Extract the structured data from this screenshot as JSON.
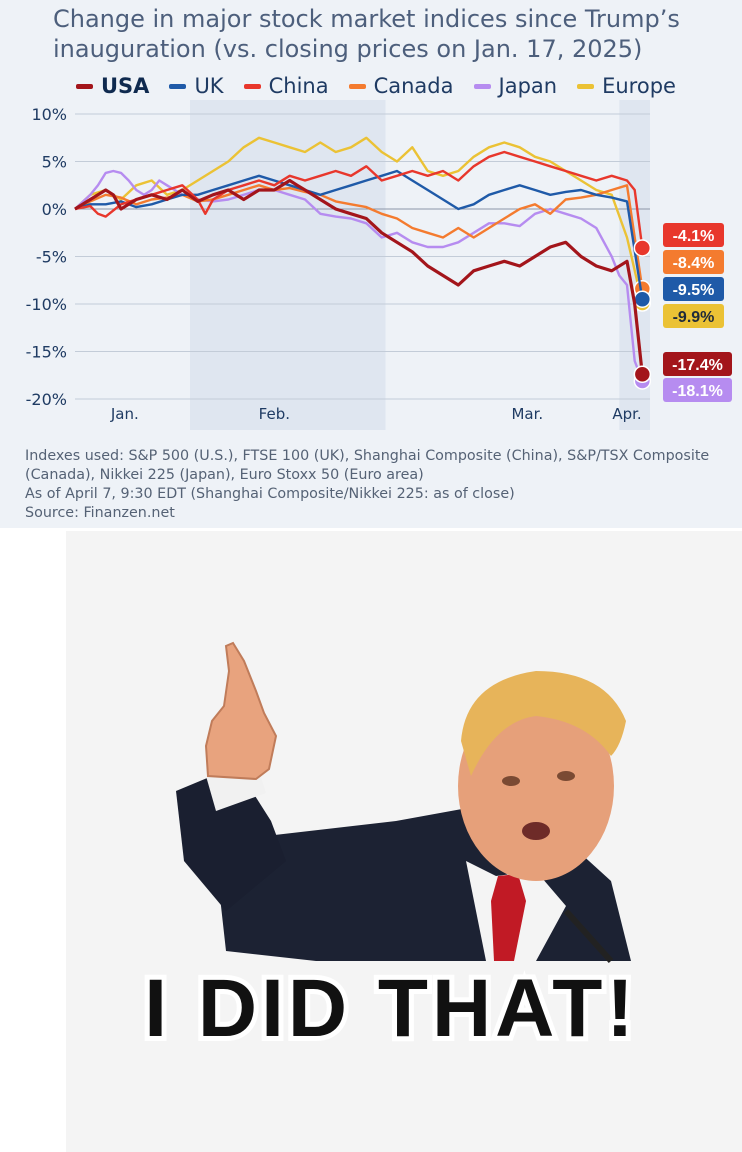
{
  "chart": {
    "title_line1": "Change in major stock market indices since Trump’s",
    "title_line2": "inauguration (vs. closing prices on Jan. 17, 2025)",
    "notes": [
      "Indexes used: S&P 500 (U.S.), FTSE 100 (UK), Shanghai Composite (China), S&P/TSX Composite",
      "(Canada), Nikkei 225 (Japan), Euro Stoxx 50 (Euro area)",
      "As of April 7, 9:30 EDT (Shanghai Composite/Nikkei 225: as of close)",
      "Source: Finanzen.net"
    ]
  },
  "chart_data": {
    "type": "line",
    "title": "Change in major stock market indices since Trump’s inauguration (vs. closing prices on Jan. 17, 2025)",
    "ylim": [
      -20,
      10
    ],
    "y_ticks": [
      10,
      5,
      0,
      -5,
      -10,
      -15,
      -20
    ],
    "y_tick_labels": [
      "10%",
      "5%",
      "0%",
      "-5%",
      "-10%",
      "-15%",
      "-20%"
    ],
    "x_tick_labels": [
      "Jan.",
      "Feb.",
      "Mar.",
      "Apr."
    ],
    "x_tick_positions": [
      6.5,
      26,
      59,
      72
    ],
    "xlim": [
      0,
      75
    ],
    "grid": true,
    "legend": "top",
    "shaded_ranges": [
      [
        15,
        40.5
      ],
      [
        71,
        75
      ]
    ],
    "series": [
      {
        "name": "Europe",
        "color": "#ebc235",
        "end_label": "-9.9%",
        "x": [
          0,
          2,
          4,
          6,
          8,
          10,
          12,
          14,
          16,
          18,
          20,
          22,
          24,
          26,
          28,
          30,
          32,
          34,
          36,
          38,
          40,
          42,
          44,
          46,
          48,
          50,
          52,
          54,
          56,
          58,
          60,
          62,
          64,
          66,
          68,
          70,
          72,
          74
        ],
        "y": [
          0,
          1.5,
          2,
          1,
          2.5,
          3,
          1.5,
          2,
          3,
          4,
          5,
          6.5,
          7.5,
          7,
          6.5,
          6,
          7,
          6,
          6.5,
          7.5,
          6,
          5,
          6.5,
          4,
          3.5,
          4,
          5.5,
          6.5,
          7,
          6.5,
          5.5,
          5,
          4,
          3,
          2,
          1.5,
          -3,
          -9.9
        ]
      },
      {
        "name": "Japan",
        "color": "#b68cf0",
        "end_label": "-18.1%",
        "x": [
          0,
          2,
          3,
          4,
          5,
          6,
          7,
          8,
          9,
          10,
          11,
          12,
          13,
          14,
          16,
          18,
          20,
          22,
          24,
          26,
          28,
          30,
          32,
          34,
          36,
          38,
          40,
          42,
          44,
          46,
          48,
          50,
          52,
          54,
          56,
          58,
          60,
          62,
          64,
          66,
          68,
          70,
          71,
          72,
          73,
          74
        ],
        "y": [
          0,
          1.5,
          2.5,
          3.8,
          4,
          3.8,
          3,
          2,
          1.5,
          2,
          3,
          2.5,
          2,
          1.5,
          1,
          0.8,
          1,
          1.5,
          2,
          2,
          1.5,
          1,
          -0.5,
          -0.8,
          -1,
          -1.5,
          -3,
          -2.5,
          -3.5,
          -4,
          -4,
          -3.5,
          -2.5,
          -1.5,
          -1.5,
          -1.8,
          -0.5,
          0,
          -0.5,
          -1,
          -2,
          -5,
          -7,
          -8,
          -16,
          -18.1
        ]
      },
      {
        "name": "Canada",
        "color": "#f47b2f",
        "end_label": "-8.4%",
        "x": [
          0,
          2,
          4,
          6,
          8,
          10,
          12,
          14,
          16,
          18,
          20,
          22,
          24,
          26,
          28,
          30,
          32,
          34,
          36,
          38,
          40,
          42,
          44,
          46,
          48,
          50,
          52,
          54,
          56,
          58,
          60,
          62,
          64,
          66,
          68,
          70,
          72,
          74
        ],
        "y": [
          0,
          0.8,
          1.5,
          1.2,
          0.5,
          1,
          1.2,
          1.5,
          0.8,
          1,
          1.5,
          2,
          2.5,
          2,
          2.2,
          1.8,
          1.5,
          0.8,
          0.5,
          0.2,
          -0.5,
          -1,
          -2,
          -2.5,
          -3,
          -2,
          -3,
          -2,
          -1,
          0,
          0.5,
          -0.5,
          1,
          1.2,
          1.5,
          2,
          2.5,
          -8.4
        ]
      },
      {
        "name": "UK",
        "color": "#1f5aa8",
        "end_label": "-9.5%",
        "x": [
          0,
          2,
          4,
          6,
          8,
          10,
          12,
          14,
          16,
          18,
          20,
          22,
          24,
          26,
          28,
          30,
          32,
          34,
          36,
          38,
          40,
          42,
          44,
          46,
          48,
          50,
          52,
          54,
          56,
          58,
          60,
          62,
          64,
          66,
          68,
          70,
          72,
          74
        ],
        "y": [
          0,
          0.5,
          0.5,
          0.8,
          0.2,
          0.5,
          1,
          1.5,
          1.5,
          2,
          2.5,
          3,
          3.5,
          3,
          2.5,
          2,
          1.5,
          2,
          2.5,
          3,
          3.5,
          4,
          3,
          2,
          1,
          0,
          0.5,
          1.5,
          2,
          2.5,
          2,
          1.5,
          1.8,
          2,
          1.5,
          1.2,
          0.8,
          -9.5
        ]
      },
      {
        "name": "China",
        "color": "#e8372c",
        "end_label": "-4.1%",
        "x": [
          0,
          2,
          3,
          4,
          6,
          8,
          10,
          12,
          14,
          16,
          17,
          18,
          20,
          22,
          24,
          26,
          28,
          30,
          32,
          34,
          36,
          38,
          40,
          42,
          44,
          46,
          48,
          50,
          52,
          54,
          56,
          58,
          60,
          62,
          64,
          66,
          68,
          70,
          72,
          73,
          74
        ],
        "y": [
          0,
          0.3,
          -0.5,
          -0.8,
          0.5,
          1,
          1.5,
          2,
          2.5,
          1,
          -0.5,
          1,
          2,
          2.5,
          3,
          2.5,
          3.5,
          3,
          3.5,
          4,
          3.5,
          4.5,
          3,
          3.5,
          4,
          3.5,
          4,
          3,
          4.5,
          5.5,
          6,
          5.5,
          5,
          4.5,
          4,
          3.5,
          3,
          3.5,
          3,
          2,
          -4.1
        ]
      },
      {
        "name": "USA",
        "color": "#a3151b",
        "end_label": "-17.4%",
        "x": [
          0,
          2,
          4,
          5,
          6,
          8,
          10,
          12,
          14,
          16,
          18,
          20,
          22,
          24,
          26,
          28,
          29,
          30,
          32,
          34,
          36,
          38,
          40,
          42,
          44,
          46,
          48,
          50,
          52,
          54,
          56,
          58,
          60,
          62,
          64,
          66,
          68,
          70,
          72,
          73,
          74
        ],
        "y": [
          0,
          1,
          2,
          1.5,
          0,
          1,
          1.5,
          1,
          2,
          0.8,
          1.5,
          2,
          1,
          2,
          2,
          3,
          2.5,
          2,
          1,
          0,
          -0.5,
          -1,
          -2.5,
          -3.5,
          -4.5,
          -6,
          -7,
          -8,
          -6.5,
          -6,
          -5.5,
          -6,
          -5,
          -4,
          -3.5,
          -5,
          -6,
          -6.5,
          -5.5,
          -10,
          -17.4
        ]
      }
    ],
    "end_label_order": [
      "-4.1%",
      "-8.4%",
      "-9.5%",
      "-9.9%",
      "-17.4%",
      "-18.1%"
    ]
  },
  "meme": {
    "caption": "I DID THAT!"
  }
}
